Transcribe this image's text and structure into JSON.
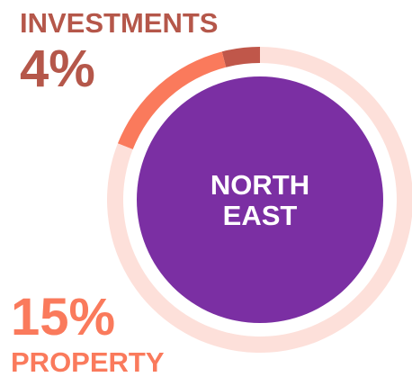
{
  "chart_data": {
    "type": "donut",
    "title_lines": [
      "NORTH",
      "EAST"
    ],
    "categories": [
      "INVESTMENTS",
      "PROPERTY",
      null
    ],
    "values": [
      4,
      15,
      81
    ],
    "value_labels": [
      "4%",
      "15%",
      null
    ],
    "colors": [
      "#c0574a",
      "#fa7a5c",
      "#fde0da"
    ],
    "center_color": "#7b2fa3",
    "direction": "counterclockwise"
  }
}
